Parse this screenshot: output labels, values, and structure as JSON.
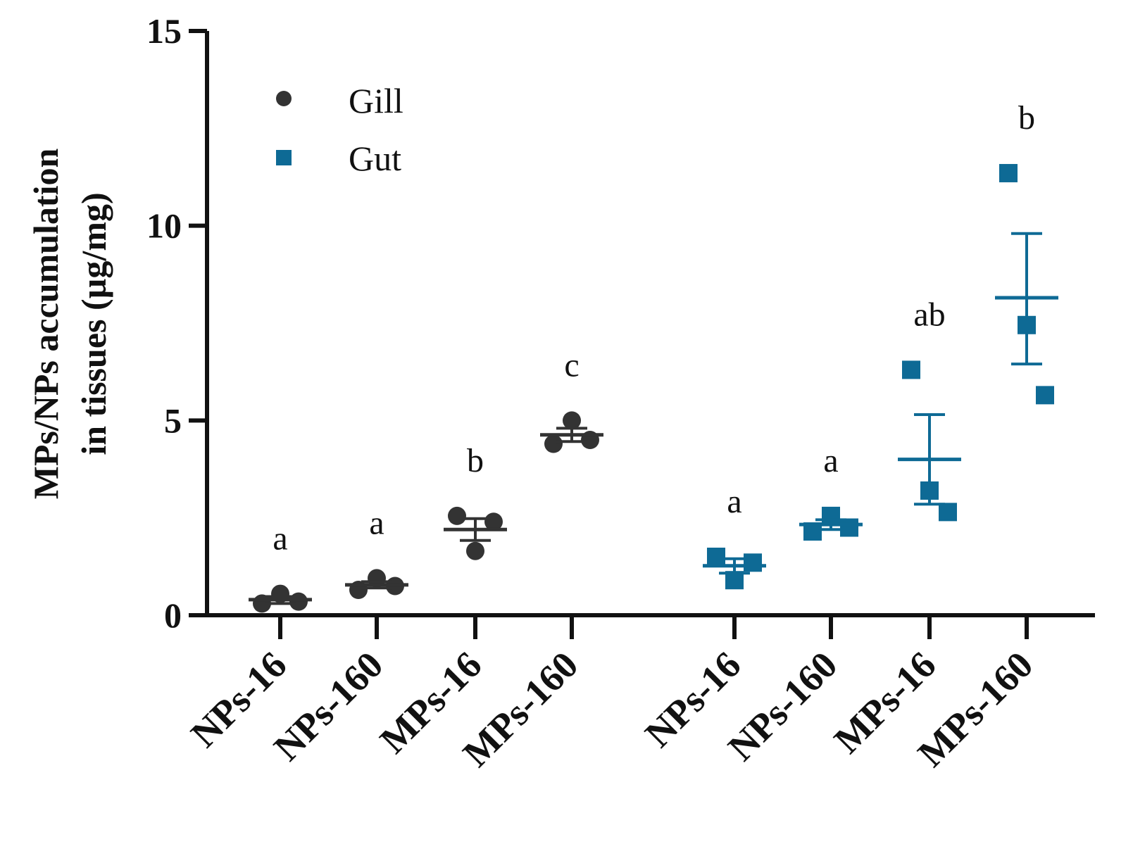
{
  "chart_data": {
    "type": "scatter",
    "title": "",
    "xlabel": "",
    "ylabel": [
      "MPs/NPs accumulation",
      "in tissues (µg/mg)"
    ],
    "ylim": [
      0,
      15
    ],
    "yticks": [
      "0",
      "5",
      "10",
      "15"
    ],
    "ytick_values": [
      0,
      5,
      10,
      15
    ],
    "grid": false,
    "legend_position": "top-left",
    "colors": {
      "Gill": "#333333",
      "Gut": "#0e6a95",
      "axis": "#111111"
    },
    "series": [
      {
        "name": "Gill",
        "marker": "circle",
        "groups": [
          {
            "category": "NPs-16",
            "points": [
              0.3,
              0.55,
              0.35
            ],
            "mean": 0.4,
            "sem_low": 0.3,
            "sem_high": 0.48,
            "label": "a"
          },
          {
            "category": "NPs-160",
            "points": [
              0.65,
              0.95,
              0.75
            ],
            "mean": 0.78,
            "sem_low": 0.7,
            "sem_high": 0.86,
            "label": "a"
          },
          {
            "category": "MPs-16",
            "points": [
              2.55,
              1.65,
              2.4
            ],
            "mean": 2.2,
            "sem_low": 1.92,
            "sem_high": 2.48,
            "label": "b"
          },
          {
            "category": "MPs-160",
            "points": [
              4.4,
              5.0,
              4.5
            ],
            "mean": 4.63,
            "sem_low": 4.46,
            "sem_high": 4.8,
            "label": "c"
          }
        ]
      },
      {
        "name": "Gut",
        "marker": "square",
        "groups": [
          {
            "category": "NPs-16",
            "points": [
              1.5,
              0.9,
              1.35
            ],
            "mean": 1.27,
            "sem_low": 1.08,
            "sem_high": 1.45,
            "label": "a"
          },
          {
            "category": "NPs-160",
            "points": [
              2.15,
              2.55,
              2.25
            ],
            "mean": 2.33,
            "sem_low": 2.2,
            "sem_high": 2.45,
            "label": "a"
          },
          {
            "category": "MPs-16",
            "points": [
              6.3,
              3.2,
              2.65
            ],
            "mean": 4.0,
            "sem_low": 2.85,
            "sem_high": 5.15,
            "label": "ab"
          },
          {
            "category": "MPs-160",
            "points": [
              11.35,
              7.45,
              5.65
            ],
            "mean": 8.15,
            "sem_low": 6.45,
            "sem_high": 9.8,
            "label": "b"
          }
        ]
      }
    ]
  }
}
